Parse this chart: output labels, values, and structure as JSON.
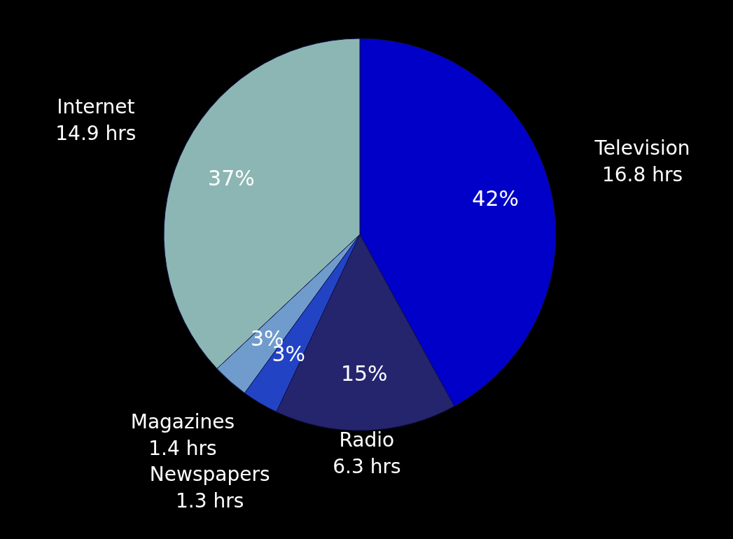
{
  "chart_data": {
    "type": "pie",
    "categories": [
      "Television",
      "Radio",
      "Newspapers",
      "Magazines",
      "Internet"
    ],
    "values": [
      42,
      15,
      3,
      3,
      37
    ],
    "colors": [
      "#0000c8",
      "#25256e",
      "#2244c4",
      "#6f9ccc",
      "#8cb6b4"
    ],
    "value_labels": [
      "42%",
      "15%",
      "3%",
      "3%",
      "37%"
    ],
    "annotations": [
      {
        "text": "16.8 hrs",
        "x": "Television"
      },
      {
        "text": "6.3 hrs",
        "x": "Radio"
      },
      {
        "text": "1.3 hrs",
        "x": "Newspapers"
      },
      {
        "text": "1.4 hrs",
        "x": "Magazines"
      },
      {
        "text": "14.9 hrs",
        "x": "Internet"
      }
    ]
  }
}
